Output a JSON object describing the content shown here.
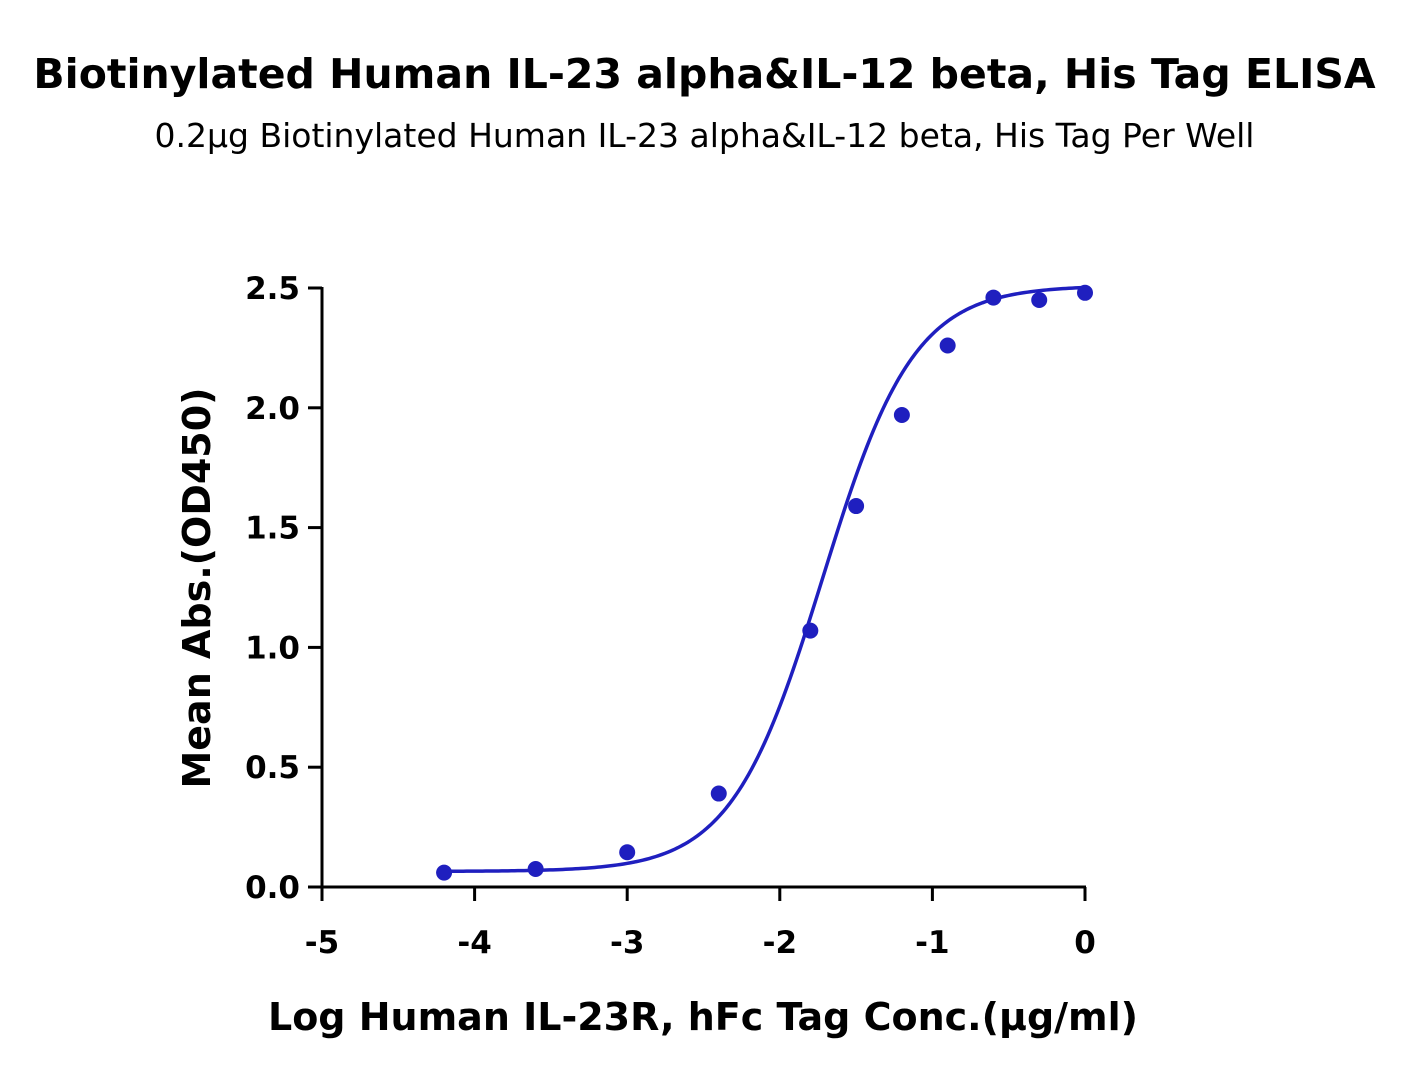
{
  "chart_data": {
    "type": "scatter",
    "title": "Biotinylated Human IL-23 alpha&IL-12 beta, His Tag ELISA",
    "subtitle": "0.2μg Biotinylated Human IL-23 alpha&IL-12 beta, His Tag Per Well",
    "xlabel": "Log Human IL-23R, hFc Tag Conc.(μg/ml)",
    "ylabel": "Mean Abs.(OD450)",
    "xlim": [
      -5,
      0
    ],
    "ylim": [
      0,
      2.5
    ],
    "xticks": [
      "-5",
      "-4",
      "-3",
      "-2",
      "-1",
      "0"
    ],
    "yticks": [
      "0.0",
      "0.5",
      "1.0",
      "1.5",
      "2.0",
      "2.5"
    ],
    "grid": false,
    "color": "#1f1fbf",
    "series": [
      {
        "points": [
          {
            "x": -4.2,
            "y": 0.06
          },
          {
            "x": -3.6,
            "y": 0.075
          },
          {
            "x": -3.0,
            "y": 0.145
          },
          {
            "x": -2.4,
            "y": 0.39
          },
          {
            "x": -1.8,
            "y": 1.07
          },
          {
            "x": -1.5,
            "y": 1.59
          },
          {
            "x": -1.2,
            "y": 1.97
          },
          {
            "x": -0.9,
            "y": 2.26
          },
          {
            "x": -0.6,
            "y": 2.46
          },
          {
            "x": -0.3,
            "y": 2.45
          },
          {
            "x": 0.0,
            "y": 2.48
          }
        ],
        "fit": {
          "bottom": 0.065,
          "top": 2.51,
          "logEC50": -1.72,
          "hill": 1.45,
          "xrange": [
            -4.2,
            0.0
          ]
        }
      }
    ]
  }
}
